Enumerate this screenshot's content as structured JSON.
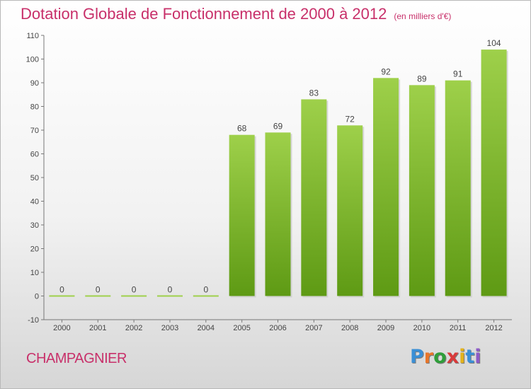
{
  "header": {
    "title": "Dotation Globale de Fonctionnement de 2000 à 2012",
    "subtitle": "(en milliers d'€)"
  },
  "footer": {
    "place": "CHAMPAGNIER",
    "logo_text": "Proxiti"
  },
  "colors": {
    "title": "#c8306a",
    "bar_top": "#9ed04a",
    "bar_bottom": "#5e9a14",
    "logo": [
      "#3a8fd6",
      "#e8762a",
      "#2f9e3a",
      "#d93a3a",
      "#e3b21a",
      "#3a8fd6",
      "#8d5bc7"
    ]
  },
  "chart_data": {
    "type": "bar",
    "categories": [
      "2000",
      "2001",
      "2002",
      "2003",
      "2004",
      "2005",
      "2006",
      "2007",
      "2008",
      "2009",
      "2010",
      "2011",
      "2012"
    ],
    "values": [
      0,
      0,
      0,
      0,
      0,
      68,
      69,
      83,
      72,
      92,
      89,
      91,
      104
    ],
    "ylim": [
      -10,
      110
    ],
    "yticks": [
      -10,
      0,
      10,
      20,
      30,
      40,
      50,
      60,
      70,
      80,
      90,
      100,
      110
    ],
    "grid": false,
    "show_value_labels": true
  }
}
